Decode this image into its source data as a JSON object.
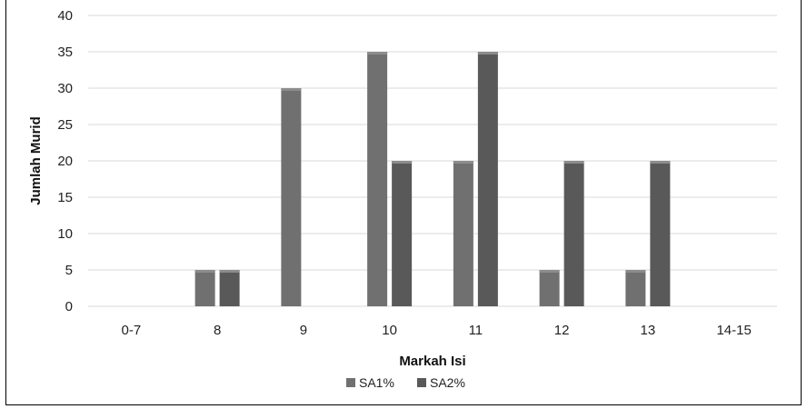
{
  "chart_data": {
    "type": "bar",
    "title": "",
    "xlabel": "Markah Isi",
    "ylabel": "Jumlah Murid",
    "categories": [
      "0-7",
      "8",
      "9",
      "10",
      "11",
      "12",
      "13",
      "14-15"
    ],
    "series": [
      {
        "name": "SA1%",
        "values": [
          0,
          5,
          30,
          35,
          20,
          5,
          5,
          0
        ],
        "color": "#707070"
      },
      {
        "name": "SA2%",
        "values": [
          0,
          5,
          0,
          20,
          35,
          20,
          20,
          0
        ],
        "color": "#595959"
      }
    ],
    "ylim": [
      0,
      40
    ],
    "yticks": [
      0,
      5,
      10,
      15,
      20,
      25,
      30,
      35,
      40
    ],
    "grid": true,
    "legend": "bottom-center"
  }
}
